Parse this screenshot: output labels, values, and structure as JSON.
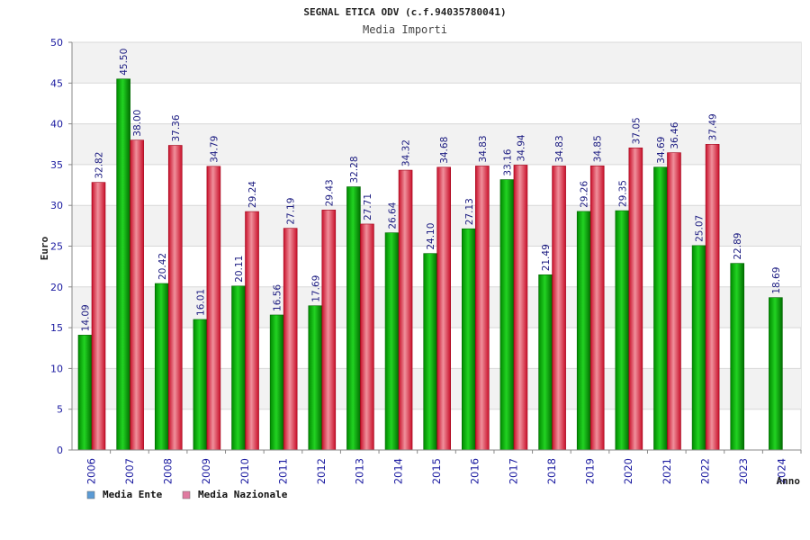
{
  "chart_data": {
    "type": "bar",
    "title": "SEGNAL ETICA ODV (c.f.94035780041)",
    "subtitle": "Media Importi",
    "xlabel": "Anno",
    "ylabel": "Euro",
    "ylim": [
      0,
      50
    ],
    "yticks": [
      0,
      5,
      10,
      15,
      20,
      25,
      30,
      35,
      40,
      45,
      50
    ],
    "grid": true,
    "legend_position": "bottom-left",
    "categories": [
      "2006",
      "2007",
      "2008",
      "2009",
      "2010",
      "2011",
      "2012",
      "2013",
      "2014",
      "2015",
      "2016",
      "2017",
      "2018",
      "2019",
      "2020",
      "2021",
      "2022",
      "2023",
      "2024"
    ],
    "series": [
      {
        "name": "Media Ente",
        "legend_color": "#5b9bd5",
        "bar_color": "#10b010",
        "values": [
          14.09,
          45.5,
          20.42,
          16.01,
          20.11,
          16.56,
          17.69,
          32.28,
          26.64,
          24.1,
          27.13,
          33.16,
          21.49,
          29.26,
          29.35,
          34.69,
          25.07,
          22.89,
          18.69
        ],
        "labels": [
          "14.09",
          "45.50",
          "20.42",
          "16.01",
          "20.11",
          "16.56",
          "17.69",
          "32.28",
          "26.64",
          "24.10",
          "27.13",
          "33.16",
          "21.49",
          "29.26",
          "29.35",
          "34.69",
          "25.07",
          "22.89",
          "18.69"
        ]
      },
      {
        "name": "Media Nazionale",
        "legend_color": "#e07aa0",
        "bar_color": "#e02a3a",
        "values": [
          32.82,
          38.0,
          37.36,
          34.79,
          29.24,
          27.19,
          29.43,
          27.71,
          34.32,
          34.68,
          34.83,
          34.94,
          34.83,
          34.85,
          37.05,
          36.46,
          37.49,
          null,
          null
        ],
        "labels": [
          "32.82",
          "38.00",
          "37.36",
          "34.79",
          "29.24",
          "27.19",
          "29.43",
          "27.71",
          "34.32",
          "34.68",
          "34.83",
          "34.94",
          "34.83",
          "34.85",
          "37.05",
          "36.46",
          "37.49",
          null,
          null
        ]
      }
    ]
  }
}
